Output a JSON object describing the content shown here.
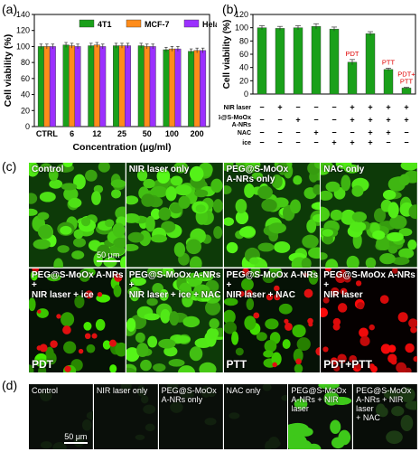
{
  "panel_labels": {
    "a": "(a)",
    "b": "(b)",
    "c": "(c)",
    "d": "(d)"
  },
  "chart_data": [
    {
      "type": "bar",
      "panel": "(a)",
      "categories": [
        "CTRL",
        "6",
        "12",
        "25",
        "50",
        "100",
        "200"
      ],
      "series": [
        {
          "name": "4T1",
          "color": "#1aa01a",
          "values": [
            100,
            102,
            101,
            101,
            101,
            96,
            94
          ]
        },
        {
          "name": "MCF-7",
          "color": "#ff8c1a",
          "values": [
            100,
            101,
            102,
            101,
            100,
            97,
            95
          ]
        },
        {
          "name": "Hela",
          "color": "#9b30ff",
          "values": [
            100,
            100,
            100,
            101,
            100,
            97,
            95
          ]
        }
      ],
      "errors": [
        3,
        3,
        3,
        3,
        3,
        3,
        3
      ],
      "xlabel": "Concentration (μg/ml)",
      "ylabel": "Cell viability (%)",
      "ylim": [
        0,
        140
      ],
      "yticks": [
        0,
        20,
        40,
        60,
        80,
        100,
        120,
        140
      ],
      "legend_position": "top-right"
    },
    {
      "type": "bar",
      "panel": "(b)",
      "values": [
        100,
        99,
        100,
        102,
        98,
        48,
        91,
        37,
        9
      ],
      "errors": [
        3,
        3,
        3,
        4,
        3,
        4,
        3,
        2,
        1
      ],
      "color": "#1aa01a",
      "annotations": [
        {
          "bar": 6,
          "text": "PDT"
        },
        {
          "bar": 8,
          "text": "PTT"
        },
        {
          "bar": 9,
          "text": "PDT+\nPTT"
        }
      ],
      "ylabel": "Cell viability (%)",
      "ylim": [
        0,
        120
      ],
      "yticks": [
        0,
        20,
        40,
        60,
        80,
        100,
        120
      ],
      "condition_rows": [
        {
          "label": "NIR laser",
          "signs": [
            "−",
            "+",
            "−",
            "−",
            "−",
            "+",
            "+",
            "+",
            "+"
          ]
        },
        {
          "label": "PEG@S-MoOx\nA-NRs",
          "signs": [
            "−",
            "−",
            "+",
            "−",
            "−",
            "+",
            "+",
            "+",
            "+"
          ]
        },
        {
          "label": "NAC",
          "signs": [
            "−",
            "−",
            "−",
            "+",
            "−",
            "−",
            "+",
            "+",
            "−"
          ]
        },
        {
          "label": "ice",
          "signs": [
            "−",
            "−",
            "−",
            "−",
            "+",
            "+",
            "+",
            "−",
            "−"
          ]
        }
      ]
    }
  ],
  "panel_c": {
    "cells": [
      {
        "label": "Control",
        "big": "",
        "style": "green",
        "scale": "50 μm"
      },
      {
        "label": "NIR laser only",
        "big": "",
        "style": "green",
        "scale": ""
      },
      {
        "label": "PEG@S-MoOx\nA-NRs only",
        "big": "",
        "style": "green",
        "scale": ""
      },
      {
        "label": "NAC only",
        "big": "",
        "style": "green",
        "scale": ""
      },
      {
        "label": "PEG@S-MoOx A-NRs +\nNIR laser + ice",
        "big": "PDT",
        "style": "mixed",
        "scale": ""
      },
      {
        "label": "PEG@S-MoOx A-NRs +\nNIR laser + ice + NAC",
        "big": "",
        "style": "green",
        "scale": ""
      },
      {
        "label": "PEG@S-MoOx A-NRs +\nNIR laser + NAC",
        "big": "PTT",
        "style": "mixed",
        "scale": ""
      },
      {
        "label": "PEG@S-MoOx A-NRs +\nNIR laser",
        "big": "PDT+PTT",
        "style": "red",
        "scale": ""
      }
    ]
  },
  "panel_d": {
    "cells": [
      {
        "label": "Control",
        "style": "dark",
        "scale": "50 μm"
      },
      {
        "label": "NIR laser only",
        "style": "dark",
        "scale": ""
      },
      {
        "label": "PEG@S-MoOx\nA-NRs only",
        "style": "dark",
        "scale": ""
      },
      {
        "label": "NAC only",
        "style": "dark",
        "scale": ""
      },
      {
        "label": "PEG@S-MoOx\nA-NRs + NIR laser",
        "style": "bright",
        "scale": ""
      },
      {
        "label": "PEG@S-MoOx\nA-NRs + NIR laser\n+ NAC",
        "style": "dim",
        "scale": ""
      }
    ]
  }
}
